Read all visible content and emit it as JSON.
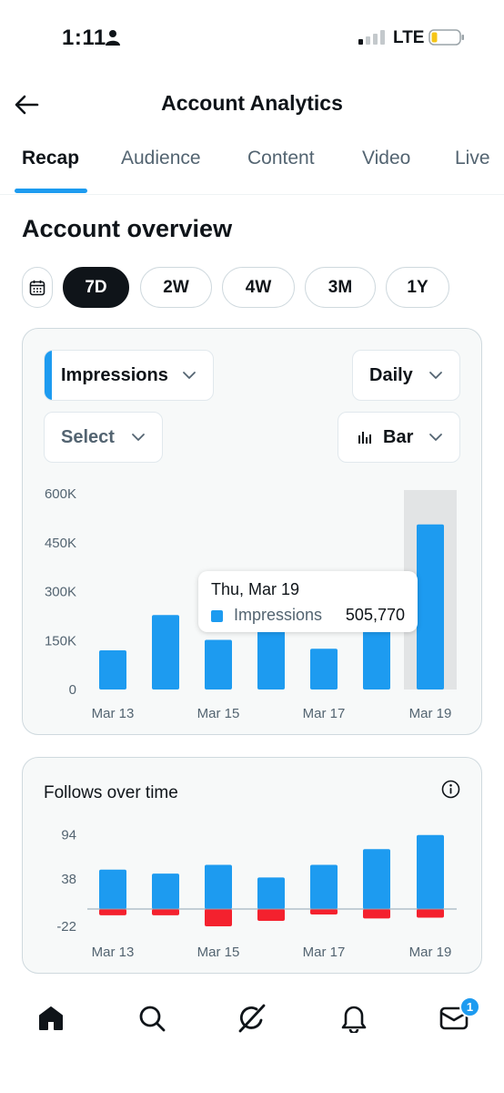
{
  "status_bar": {
    "time": "1:11",
    "network": "LTE"
  },
  "header": {
    "title": "Account Analytics"
  },
  "tabs": [
    {
      "label": "Recap",
      "active": true
    },
    {
      "label": "Audience",
      "active": false
    },
    {
      "label": "Content",
      "active": false
    },
    {
      "label": "Video",
      "active": false
    },
    {
      "label": "Live",
      "active": false
    }
  ],
  "overview": {
    "title": "Account overview",
    "ranges": [
      {
        "label": "7D",
        "active": true
      },
      {
        "label": "2W",
        "active": false
      },
      {
        "label": "4W",
        "active": false
      },
      {
        "label": "3M",
        "active": false
      },
      {
        "label": "1Y",
        "active": false
      }
    ]
  },
  "controls": {
    "metric": "Impressions",
    "interval": "Daily",
    "compare": "Select",
    "chart_type": "Bar"
  },
  "tooltip": {
    "date": "Thu, Mar 19",
    "series": "Impressions",
    "value": "505,770"
  },
  "follows": {
    "title": "Follows over time"
  },
  "colors": {
    "accent": "#1d9bf0",
    "negative": "#f4212e",
    "text": "#0f1419",
    "muted": "#536471"
  },
  "nav": {
    "items": [
      "home-icon",
      "search-icon",
      "grok-icon",
      "bell-icon",
      "mail-icon"
    ],
    "messages_badge": "1"
  },
  "chart_data": [
    {
      "type": "bar",
      "title": "",
      "categories": [
        "Mar 13",
        "Mar 14",
        "Mar 15",
        "Mar 16",
        "Mar 17",
        "Mar 18",
        "Mar 19"
      ],
      "x_tick_labels": [
        "Mar 13",
        "Mar 15",
        "Mar 17",
        "Mar 19"
      ],
      "y_ticks": [
        "600K",
        "450K",
        "300K",
        "150K",
        "0"
      ],
      "ylim": [
        0,
        600000
      ],
      "series": [
        {
          "name": "Impressions",
          "values": [
            120000,
            228000,
            152000,
            190000,
            125000,
            180000,
            505770
          ]
        }
      ],
      "highlighted_category": "Mar 19",
      "grid": false
    },
    {
      "type": "bar",
      "title": "Follows over time",
      "categories": [
        "Mar 13",
        "Mar 14",
        "Mar 15",
        "Mar 16",
        "Mar 17",
        "Mar 18",
        "Mar 19"
      ],
      "x_tick_labels": [
        "Mar 13",
        "Mar 15",
        "Mar 17",
        "Mar 19"
      ],
      "y_ticks": [
        "94",
        "38",
        "-22"
      ],
      "ylim": [
        -22,
        94
      ],
      "series": [
        {
          "values": [
            50,
            45,
            56,
            40,
            56,
            76,
            94
          ]
        },
        {
          "values": [
            -8,
            -8,
            -22,
            -15,
            -7,
            -12,
            -11
          ]
        }
      ],
      "grid": false
    }
  ]
}
